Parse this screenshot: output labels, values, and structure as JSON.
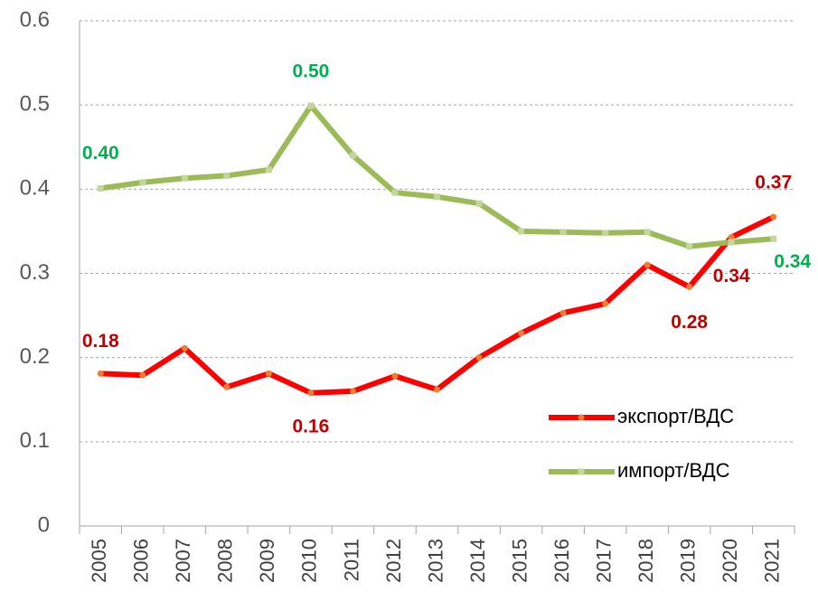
{
  "chart_data": {
    "type": "line",
    "categories": [
      "2005",
      "2006",
      "2007",
      "2008",
      "2009",
      "2010",
      "2011",
      "2012",
      "2013",
      "2014",
      "2015",
      "2016",
      "2017",
      "2018",
      "2019",
      "2020",
      "2021"
    ],
    "series": [
      {
        "name": "экспорт/ВДС",
        "color": "#ff0000",
        "marker_color": "#ed7d31",
        "label_color": "#c00000",
        "values": [
          0.181,
          0.179,
          0.211,
          0.165,
          0.181,
          0.158,
          0.16,
          0.178,
          0.162,
          0.2,
          0.229,
          0.253,
          0.264,
          0.31,
          0.284,
          0.343,
          0.367
        ],
        "value_labels": [
          "0.18",
          null,
          null,
          null,
          null,
          "0.16",
          null,
          null,
          null,
          null,
          null,
          null,
          null,
          null,
          "0.28",
          "0.34",
          "0.37"
        ]
      },
      {
        "name": "импорт/ВДС",
        "color": "#9bbb59",
        "marker_color": "#c4d79b",
        "label_color": "#00b050",
        "values": [
          0.401,
          0.408,
          0.413,
          0.416,
          0.423,
          0.499,
          0.44,
          0.396,
          0.391,
          0.383,
          0.35,
          0.349,
          0.348,
          0.349,
          0.332,
          0.337,
          0.341
        ],
        "value_labels": [
          "0.40",
          null,
          null,
          null,
          null,
          "0.50",
          null,
          null,
          null,
          null,
          null,
          null,
          null,
          null,
          null,
          null,
          "0.34"
        ]
      }
    ],
    "ylim": [
      0,
      0.6
    ],
    "yticks": [
      0,
      0.1,
      0.2,
      0.3,
      0.4,
      0.5,
      0.6
    ],
    "grid": true,
    "legend": "right"
  }
}
